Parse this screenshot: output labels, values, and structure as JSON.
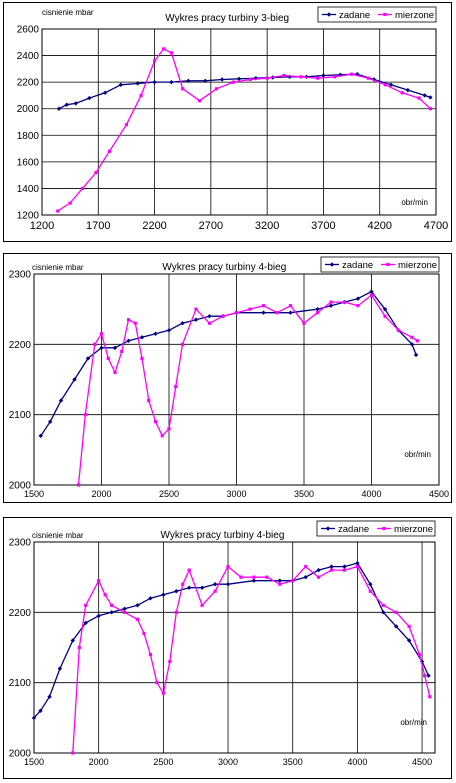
{
  "colors": {
    "zadane": "#000080",
    "mierzone": "#ff00ff",
    "grid": "#000000"
  },
  "chart_data": [
    {
      "type": "line",
      "title": "Wykres pracy turbiny 3-bieg",
      "ylabel": "cisnienie mbar",
      "xlabel": "obr/min",
      "xlim": [
        1200,
        4700
      ],
      "ylim": [
        1200,
        2600
      ],
      "xticks": [
        1200,
        1700,
        2200,
        2700,
        3200,
        3700,
        4200,
        4700
      ],
      "yticks": [
        1200,
        1400,
        1600,
        1800,
        2000,
        2200,
        2400,
        2600
      ],
      "grid": true,
      "legend_position": "top-right",
      "series": [
        {
          "name": "zadane",
          "x": [
            1350,
            1420,
            1500,
            1620,
            1760,
            1900,
            2050,
            2200,
            2350,
            2500,
            2650,
            2800,
            2950,
            3100,
            3250,
            3400,
            3550,
            3700,
            3850,
            4000,
            4150,
            4300,
            4450,
            4600,
            4650
          ],
          "y": [
            2000,
            2030,
            2040,
            2080,
            2120,
            2180,
            2190,
            2200,
            2200,
            2210,
            2210,
            2220,
            2225,
            2230,
            2235,
            2240,
            2240,
            2250,
            2255,
            2260,
            2220,
            2180,
            2140,
            2100,
            2085
          ]
        },
        {
          "name": "mierzone",
          "x": [
            1340,
            1450,
            1560,
            1680,
            1800,
            1950,
            2080,
            2200,
            2280,
            2350,
            2450,
            2600,
            2750,
            2900,
            3050,
            3200,
            3350,
            3500,
            3650,
            3800,
            3950,
            4100,
            4250,
            4400,
            4550,
            4650
          ],
          "y": [
            1230,
            1290,
            1400,
            1520,
            1680,
            1880,
            2100,
            2360,
            2450,
            2420,
            2150,
            2060,
            2150,
            2200,
            2220,
            2230,
            2250,
            2240,
            2230,
            2240,
            2260,
            2230,
            2180,
            2120,
            2080,
            2000
          ]
        }
      ]
    },
    {
      "type": "line",
      "title": "Wykres pracy turbiny 4-bieg",
      "ylabel": "cisnienie mbar",
      "xlabel": "obr/min",
      "xlim": [
        1500,
        4500
      ],
      "ylim": [
        2000,
        2300
      ],
      "xticks": [
        1500,
        2000,
        2500,
        3000,
        3500,
        4000,
        4500
      ],
      "yticks": [
        2000,
        2100,
        2200,
        2300
      ],
      "grid": true,
      "legend_position": "top-right",
      "series": [
        {
          "name": "zadane",
          "x": [
            1550,
            1620,
            1700,
            1800,
            1900,
            2000,
            2100,
            2200,
            2300,
            2400,
            2500,
            2600,
            2700,
            2800,
            2900,
            3000,
            3200,
            3400,
            3600,
            3700,
            3800,
            3900,
            4000,
            4100,
            4200,
            4300,
            4330
          ],
          "y": [
            2070,
            2090,
            2120,
            2150,
            2180,
            2195,
            2195,
            2205,
            2210,
            2215,
            2220,
            2230,
            2235,
            2240,
            2240,
            2245,
            2245,
            2245,
            2250,
            2255,
            2260,
            2265,
            2275,
            2250,
            2220,
            2200,
            2185
          ]
        },
        {
          "name": "mierzone",
          "x": [
            1830,
            1880,
            1950,
            2000,
            2050,
            2100,
            2150,
            2200,
            2250,
            2300,
            2350,
            2400,
            2450,
            2500,
            2550,
            2600,
            2700,
            2800,
            2900,
            3000,
            3100,
            3200,
            3300,
            3400,
            3500,
            3600,
            3700,
            3800,
            3900,
            4000,
            4100,
            4200,
            4300,
            4340
          ],
          "y": [
            2000,
            2100,
            2200,
            2215,
            2180,
            2160,
            2190,
            2235,
            2230,
            2180,
            2120,
            2090,
            2070,
            2080,
            2140,
            2200,
            2250,
            2230,
            2240,
            2245,
            2250,
            2255,
            2245,
            2255,
            2230,
            2245,
            2260,
            2260,
            2255,
            2270,
            2240,
            2220,
            2210,
            2205
          ]
        }
      ]
    },
    {
      "type": "line",
      "title": "Wykres pracy turbiny 4-bieg",
      "ylabel": "cisnienie mbar",
      "xlabel": "obr/min",
      "xlim": [
        1500,
        4600
      ],
      "ylim": [
        2000,
        2300
      ],
      "xticks": [
        1500,
        2000,
        2500,
        3000,
        3500,
        4000,
        4500
      ],
      "yticks": [
        2000,
        2100,
        2200,
        2300
      ],
      "grid": true,
      "legend_position": "top-right",
      "series": [
        {
          "name": "zadane",
          "x": [
            1500,
            1550,
            1620,
            1700,
            1800,
            1900,
            2000,
            2100,
            2200,
            2300,
            2400,
            2500,
            2600,
            2700,
            2800,
            2900,
            3000,
            3200,
            3400,
            3500,
            3600,
            3700,
            3800,
            3900,
            4000,
            4100,
            4200,
            4300,
            4400,
            4500,
            4550
          ],
          "y": [
            2050,
            2060,
            2080,
            2120,
            2160,
            2185,
            2195,
            2200,
            2205,
            2210,
            2220,
            2225,
            2230,
            2235,
            2235,
            2240,
            2240,
            2245,
            2245,
            2245,
            2250,
            2260,
            2265,
            2265,
            2270,
            2240,
            2200,
            2180,
            2160,
            2130,
            2110
          ]
        },
        {
          "name": "mierzone",
          "x": [
            1800,
            1850,
            1900,
            2000,
            2050,
            2100,
            2200,
            2300,
            2350,
            2400,
            2450,
            2500,
            2550,
            2600,
            2650,
            2700,
            2800,
            2900,
            3000,
            3100,
            3200,
            3300,
            3400,
            3500,
            3600,
            3700,
            3800,
            3900,
            4000,
            4100,
            4200,
            4300,
            4400,
            4480,
            4520,
            4560
          ],
          "y": [
            2000,
            2150,
            2210,
            2245,
            2225,
            2210,
            2200,
            2190,
            2170,
            2140,
            2100,
            2085,
            2130,
            2200,
            2240,
            2260,
            2210,
            2230,
            2265,
            2250,
            2250,
            2250,
            2240,
            2245,
            2265,
            2250,
            2260,
            2260,
            2265,
            2230,
            2210,
            2200,
            2180,
            2140,
            2110,
            2080
          ]
        }
      ]
    }
  ]
}
